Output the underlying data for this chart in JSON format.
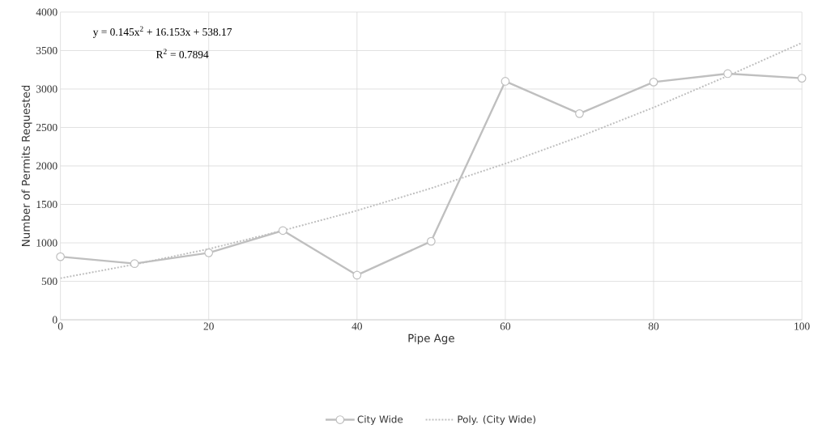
{
  "chart_data": {
    "type": "line",
    "xlabel": "Pipe Age",
    "ylabel": "Number of Permits Requested",
    "annotations": [
      "y = 0.145x$^{2}$ + 16.153x + 538.17",
      "R$^{2}$ = 0.7894"
    ],
    "x": [
      0,
      10,
      20,
      30,
      40,
      50,
      60,
      70,
      80,
      90,
      100
    ],
    "series": [
      {
        "name": "City Wide",
        "color": "#bfbfbf",
        "marker": "circle",
        "line_style": "solid",
        "values": [
          820,
          730,
          870,
          1160,
          580,
          1020,
          3100,
          2680,
          3090,
          3200,
          3140
        ]
      },
      {
        "name": "Poly. (City Wide)",
        "color": "#bfbfbf",
        "marker": "none",
        "line_style": "dotted",
        "x": [
          0,
          10,
          20,
          30,
          40,
          50,
          60,
          70,
          80,
          90,
          100
        ],
        "values": [
          540,
          720,
          920,
          1160,
          1420,
          1710,
          2030,
          2380,
          2760,
          3170,
          3600
        ]
      }
    ],
    "xlim": [
      0,
      100
    ],
    "xticks": [
      0,
      20,
      40,
      60,
      80,
      100
    ],
    "ylim": [
      0,
      4000
    ],
    "yticks": [
      0,
      500,
      1000,
      1500,
      2000,
      2500,
      3000,
      3500,
      4000
    ],
    "grid": true,
    "legend": "bottom"
  }
}
